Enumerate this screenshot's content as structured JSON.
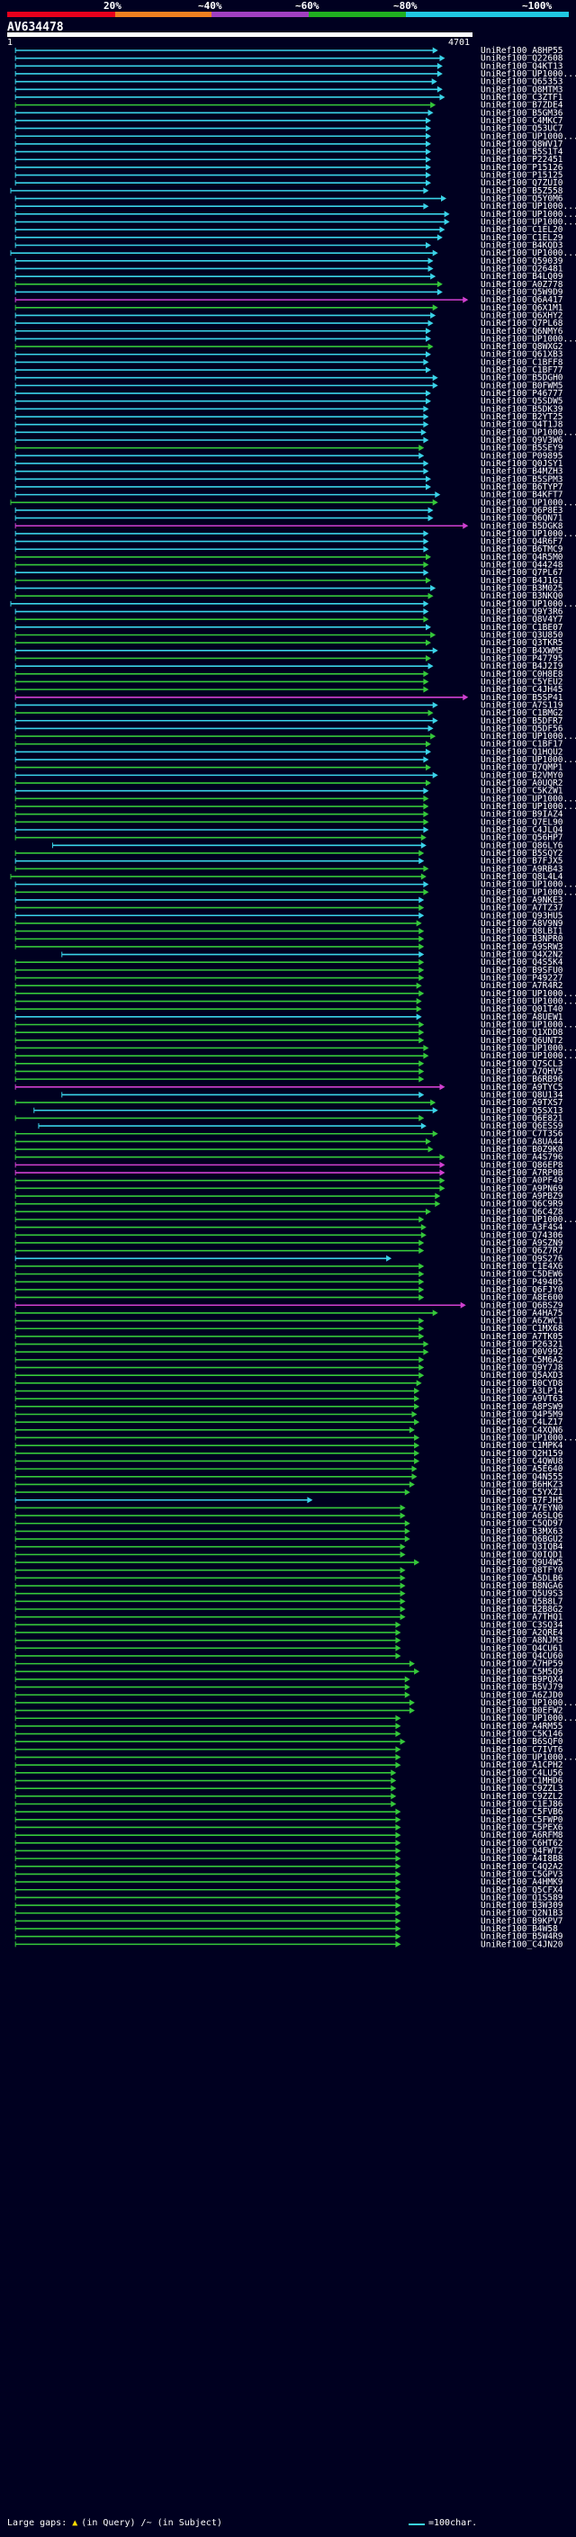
{
  "scale": {
    "labels": [
      "20%",
      "~40%",
      "~60%",
      "~80%",
      "~100%"
    ],
    "colors": [
      "#e8001c",
      "#f08020",
      "#a040c0",
      "#20b020",
      "#20c8e0"
    ]
  },
  "query": {
    "name": "AV634478",
    "start": "1",
    "end": "4701"
  },
  "legend": {
    "gaps_label": "Large gaps:",
    "query_gap": "(in Query)",
    "subject_gap": "(in Subject)",
    "scale_text": "=100char."
  },
  "colors": {
    "cyan": "#3ad3e8",
    "green": "#35c83a",
    "magenta": "#d040d0",
    "background": "#000020"
  },
  "hits": [
    [
      "UniRef100_A8HP55",
      "c",
      0.01,
      0.92
    ],
    [
      "UniRef100_Q22608",
      "c",
      0.01,
      0.935
    ],
    [
      "UniRef100_Q4KT13",
      "c",
      0.01,
      0.93
    ],
    [
      "UniRef100_UP1000...",
      "c",
      0.01,
      0.93
    ],
    [
      "UniRef100_Q65353",
      "c",
      0.01,
      0.918
    ],
    [
      "UniRef100_Q8MTM3",
      "c",
      0.01,
      0.93
    ],
    [
      "UniRef100_C3ZTF1",
      "c",
      0.01,
      0.935
    ],
    [
      "UniRef100_B7ZDE4",
      "g",
      0.01,
      0.915
    ],
    [
      "UniRef100_B5GM36",
      "c",
      0.01,
      0.91
    ],
    [
      "UniRef100_C4MKC7",
      "c",
      0.01,
      0.905
    ],
    [
      "UniRef100_Q53UC7",
      "c",
      0.01,
      0.905
    ],
    [
      "UniRef100_UP1000...",
      "c",
      0.01,
      0.905
    ],
    [
      "UniRef100_Q8WV17",
      "c",
      0.01,
      0.905
    ],
    [
      "UniRef100_B5S1T4",
      "c",
      0.01,
      0.905
    ],
    [
      "UniRef100_P22451",
      "c",
      0.01,
      0.905
    ],
    [
      "UniRef100_P15126",
      "c",
      0.01,
      0.905
    ],
    [
      "UniRef100_P15125",
      "c",
      0.01,
      0.905
    ],
    [
      "UniRef100_Q7ZUI0",
      "c",
      0.01,
      0.905
    ],
    [
      "UniRef100_B5Z558",
      "c",
      0.0,
      0.9
    ],
    [
      "UniRef100_Q5Y0M6",
      "c",
      0.01,
      0.938
    ],
    [
      "UniRef100_UP1000...",
      "c",
      0.01,
      0.9
    ],
    [
      "UniRef100_UP1000...",
      "c",
      0.01,
      0.945
    ],
    [
      "UniRef100_UP1000...",
      "c",
      0.01,
      0.945
    ],
    [
      "UniRef100_C1EL20",
      "c",
      0.01,
      0.935
    ],
    [
      "UniRef100_C1EL29",
      "c",
      0.01,
      0.93
    ],
    [
      "UniRef100_B4KQD3",
      "c",
      0.01,
      0.905
    ],
    [
      "UniRef100_UP1000...",
      "c",
      0.0,
      0.92
    ],
    [
      "UniRef100_Q59039",
      "c",
      0.01,
      0.91
    ],
    [
      "UniRef100_Q26481",
      "c",
      0.01,
      0.91
    ],
    [
      "UniRef100_B4LQ09",
      "c",
      0.01,
      0.915
    ],
    [
      "UniRef100_A0Z778",
      "g",
      0.01,
      0.93
    ],
    [
      "UniRef100_Q5W9D9",
      "c",
      0.01,
      0.93
    ],
    [
      "UniRef100_Q6A417",
      "m",
      0.01,
      0.985
    ],
    [
      "UniRef100_Q6X1M1",
      "g",
      0.01,
      0.92
    ],
    [
      "UniRef100_Q6XHY2",
      "c",
      0.01,
      0.915
    ],
    [
      "UniRef100_Q7PL68",
      "c",
      0.01,
      0.91
    ],
    [
      "UniRef100_Q6NMY6",
      "c",
      0.01,
      0.905
    ],
    [
      "UniRef100_UP1000...",
      "c",
      0.01,
      0.905
    ],
    [
      "UniRef100_Q8WXG2",
      "g",
      0.01,
      0.91
    ],
    [
      "UniRef100_Q61XB3",
      "c",
      0.01,
      0.905
    ],
    [
      "UniRef100_C1BFF8",
      "c",
      0.01,
      0.9
    ],
    [
      "UniRef100_C1BF77",
      "c",
      0.01,
      0.905
    ],
    [
      "UniRef100_B5DGH0",
      "c",
      0.01,
      0.92
    ],
    [
      "UniRef100_B0FWM5",
      "c",
      0.01,
      0.92
    ],
    [
      "UniRef100_P46777",
      "c",
      0.01,
      0.905
    ],
    [
      "UniRef100_Q5SDW5",
      "c",
      0.01,
      0.905
    ],
    [
      "UniRef100_B5DK39",
      "c",
      0.01,
      0.9
    ],
    [
      "UniRef100_B2YT25",
      "c",
      0.01,
      0.9
    ],
    [
      "UniRef100_Q4T1J8",
      "c",
      0.01,
      0.9
    ],
    [
      "UniRef100_UP1000...",
      "c",
      0.01,
      0.895
    ],
    [
      "UniRef100_Q9V3W6",
      "c",
      0.01,
      0.9
    ],
    [
      "UniRef100_B5SEY9",
      "g",
      0.01,
      0.89
    ],
    [
      "UniRef100_P09895",
      "c",
      0.01,
      0.89
    ],
    [
      "UniRef100_Q0JSY1",
      "c",
      0.01,
      0.9
    ],
    [
      "UniRef100_B4MZH3",
      "c",
      0.01,
      0.9
    ],
    [
      "UniRef100_B5SPM3",
      "c",
      0.01,
      0.905
    ],
    [
      "UniRef100_B6TYP7",
      "c",
      0.01,
      0.905
    ],
    [
      "UniRef100_B4KFT7",
      "c",
      0.01,
      0.925
    ],
    [
      "UniRef100_UP1000...",
      "g",
      0.0,
      0.92
    ],
    [
      "UniRef100_Q6P8E3",
      "c",
      0.01,
      0.91
    ],
    [
      "UniRef100_Q6QN71",
      "c",
      0.01,
      0.91
    ],
    [
      "UniRef100_B5DGK8",
      "m",
      0.01,
      0.985
    ],
    [
      "UniRef100_UP1000...",
      "c",
      0.01,
      0.9
    ],
    [
      "UniRef100_Q4R6F7",
      "c",
      0.01,
      0.9
    ],
    [
      "UniRef100_B6TMC9",
      "c",
      0.01,
      0.9
    ],
    [
      "UniRef100_Q4R5M0",
      "g",
      0.01,
      0.905
    ],
    [
      "UniRef100_Q44248",
      "g",
      0.01,
      0.9
    ],
    [
      "UniRef100_Q7PL67",
      "c",
      0.01,
      0.9
    ],
    [
      "UniRef100_B4J1G1",
      "g",
      0.01,
      0.905
    ],
    [
      "UniRef100_B3M025",
      "c",
      0.01,
      0.915
    ],
    [
      "UniRef100_B3NKQ0",
      "g",
      0.01,
      0.91
    ],
    [
      "UniRef100_UP1000...",
      "c",
      0.0,
      0.9
    ],
    [
      "UniRef100_Q9Y3R6",
      "c",
      0.01,
      0.9
    ],
    [
      "UniRef100_Q8V4Y7",
      "g",
      0.01,
      0.9
    ],
    [
      "UniRef100_C1BE07",
      "c",
      0.01,
      0.905
    ],
    [
      "UniRef100_Q3U850",
      "g",
      0.01,
      0.915
    ],
    [
      "UniRef100_Q3TKR5",
      "g",
      0.01,
      0.905
    ],
    [
      "UniRef100_B4XWM5",
      "c",
      0.01,
      0.92
    ],
    [
      "UniRef100_P47795",
      "g",
      0.01,
      0.905
    ],
    [
      "UniRef100_B4J2I9",
      "c",
      0.01,
      0.91
    ],
    [
      "UniRef100_C0H8E8",
      "g",
      0.01,
      0.9
    ],
    [
      "UniRef100_C5YEU2",
      "g",
      0.01,
      0.9
    ],
    [
      "UniRef100_C4JH45",
      "g",
      0.01,
      0.9
    ],
    [
      "UniRef100_B5SP41",
      "m",
      0.01,
      0.985
    ],
    [
      "UniRef100_A7S119",
      "c",
      0.01,
      0.92
    ],
    [
      "UniRef100_C1BMG2",
      "g",
      0.01,
      0.91
    ],
    [
      "UniRef100_B5DFR7",
      "c",
      0.01,
      0.92
    ],
    [
      "UniRef100_Q5DF56",
      "c",
      0.01,
      0.91
    ],
    [
      "UniRef100_UP1000...",
      "g",
      0.01,
      0.915
    ],
    [
      "UniRef100_C1BF17",
      "g",
      0.01,
      0.905
    ],
    [
      "UniRef100_Q1HQU2",
      "c",
      0.01,
      0.905
    ],
    [
      "UniRef100_UP1000...",
      "c",
      0.01,
      0.9
    ],
    [
      "UniRef100_Q7QMP1",
      "g",
      0.01,
      0.905
    ],
    [
      "UniRef100_B2VMY0",
      "c",
      0.01,
      0.92
    ],
    [
      "UniRef100_A0UQR2",
      "g",
      0.01,
      0.905
    ],
    [
      "UniRef100_C5KZW1",
      "c",
      0.01,
      0.9
    ],
    [
      "UniRef100_UP1000...",
      "g",
      0.01,
      0.9
    ],
    [
      "UniRef100_UP1000...",
      "g",
      0.01,
      0.9
    ],
    [
      "UniRef100_B9IAZ4",
      "g",
      0.01,
      0.9
    ],
    [
      "UniRef100_Q7EL90",
      "g",
      0.01,
      0.9
    ],
    [
      "UniRef100_C4JLQ4",
      "c",
      0.01,
      0.9
    ],
    [
      "UniRef100_Q56HP7",
      "g",
      0.01,
      0.895
    ],
    [
      "UniRef100_Q86LY6",
      "c",
      0.09,
      0.895
    ],
    [
      "UniRef100_B5SQY2",
      "g",
      0.01,
      0.89
    ],
    [
      "UniRef100_B7FJX5",
      "c",
      0.01,
      0.89
    ],
    [
      "UniRef100_A9RB43",
      "g",
      0.01,
      0.9
    ],
    [
      "UniRef100_Q8L4L4",
      "g",
      0.0,
      0.895
    ],
    [
      "UniRef100_UP1000...",
      "c",
      0.01,
      0.9
    ],
    [
      "UniRef100_UP1000...",
      "g",
      0.01,
      0.9
    ],
    [
      "UniRef100_A9NKE3",
      "c",
      0.01,
      0.89
    ],
    [
      "UniRef100_A7TZ37",
      "g",
      0.01,
      0.89
    ],
    [
      "UniRef100_Q93HU5",
      "c",
      0.01,
      0.89
    ],
    [
      "UniRef100_A8V9N9",
      "g",
      0.01,
      0.885
    ],
    [
      "UniRef100_Q8LBI1",
      "g",
      0.01,
      0.89
    ],
    [
      "UniRef100_B3NPR0",
      "g",
      0.01,
      0.89
    ],
    [
      "UniRef100_A9SRW3",
      "g",
      0.01,
      0.89
    ],
    [
      "UniRef100_Q4X2N2",
      "c",
      0.11,
      0.89
    ],
    [
      "UniRef100_Q4S5K4",
      "g",
      0.01,
      0.89
    ],
    [
      "UniRef100_B9SFU0",
      "g",
      0.01,
      0.89
    ],
    [
      "UniRef100_P49227",
      "g",
      0.01,
      0.89
    ],
    [
      "UniRef100_A7R4R2",
      "g",
      0.01,
      0.885
    ],
    [
      "UniRef100_UP1000...",
      "g",
      0.01,
      0.89
    ],
    [
      "UniRef100_UP1000...",
      "g",
      0.01,
      0.885
    ],
    [
      "UniRef100_Q01T40",
      "g",
      0.01,
      0.885
    ],
    [
      "UniRef100_A8UEW1",
      "c",
      0.01,
      0.885
    ],
    [
      "UniRef100_UP1000...",
      "g",
      0.01,
      0.89
    ],
    [
      "UniRef100_Q1XDD8",
      "g",
      0.01,
      0.89
    ],
    [
      "UniRef100_Q6UNT2",
      "g",
      0.01,
      0.89
    ],
    [
      "UniRef100_UP1000...",
      "g",
      0.01,
      0.9
    ],
    [
      "UniRef100_UP1000...",
      "g",
      0.01,
      0.9
    ],
    [
      "UniRef100_Q7SCL3",
      "g",
      0.01,
      0.89
    ],
    [
      "UniRef100_A7QHV5",
      "g",
      0.01,
      0.89
    ],
    [
      "UniRef100_B6RB96",
      "g",
      0.01,
      0.89
    ],
    [
      "UniRef100_A9TYC5",
      "m",
      0.01,
      0.935
    ],
    [
      "UniRef100_Q8U134",
      "c",
      0.11,
      0.89
    ],
    [
      "UniRef100_A9TXS7",
      "g",
      0.01,
      0.915
    ],
    [
      "UniRef100_Q5SX13",
      "c",
      0.05,
      0.92
    ],
    [
      "UniRef100_Q6E821",
      "g",
      0.01,
      0.89
    ],
    [
      "UniRef100_Q6ESS9",
      "c",
      0.06,
      0.895
    ],
    [
      "UniRef100_C7T3S6",
      "g",
      0.01,
      0.92
    ],
    [
      "UniRef100_A8UA44",
      "g",
      0.01,
      0.905
    ],
    [
      "UniRef100_B0Z9K0",
      "g",
      0.01,
      0.91
    ],
    [
      "UniRef100_A4S796",
      "g",
      0.01,
      0.935
    ],
    [
      "UniRef100_Q86EP8",
      "m",
      0.01,
      0.935
    ],
    [
      "UniRef100_A7RP0B",
      "m",
      0.01,
      0.935
    ],
    [
      "UniRef100_A0PF49",
      "g",
      0.01,
      0.935
    ],
    [
      "UniRef100_A9PN69",
      "g",
      0.01,
      0.935
    ],
    [
      "UniRef100_A9PBZ9",
      "g",
      0.01,
      0.925
    ],
    [
      "UniRef100_Q6C9R9",
      "g",
      0.01,
      0.925
    ],
    [
      "UniRef100_Q6C4Z8",
      "g",
      0.01,
      0.905
    ],
    [
      "UniRef100_UP1000...",
      "g",
      0.01,
      0.89
    ],
    [
      "UniRef100_A3F4S4",
      "g",
      0.01,
      0.895
    ],
    [
      "UniRef100_Q74306",
      "g",
      0.01,
      0.895
    ],
    [
      "UniRef100_A9SZN9",
      "g",
      0.01,
      0.89
    ],
    [
      "UniRef100_Q6Z7R7",
      "g",
      0.01,
      0.89
    ],
    [
      "UniRef100_Q9S276",
      "c",
      0.01,
      0.82
    ],
    [
      "UniRef100_C1E4X6",
      "g",
      0.01,
      0.89
    ],
    [
      "UniRef100_C5DEW6",
      "g",
      0.01,
      0.89
    ],
    [
      "UniRef100_P49405",
      "g",
      0.01,
      0.89
    ],
    [
      "UniRef100_Q6FJY0",
      "g",
      0.01,
      0.89
    ],
    [
      "UniRef100_A8E600",
      "g",
      0.01,
      0.89
    ],
    [
      "UniRef100_Q6BSZ9",
      "m",
      0.01,
      0.98
    ],
    [
      "UniRef100_A4HA75",
      "g",
      0.01,
      0.92
    ],
    [
      "UniRef100_A6ZWC1",
      "g",
      0.01,
      0.89
    ],
    [
      "UniRef100_C1MX68",
      "g",
      0.01,
      0.89
    ],
    [
      "UniRef100_A7TK05",
      "g",
      0.01,
      0.89
    ],
    [
      "UniRef100_P26321",
      "g",
      0.01,
      0.9
    ],
    [
      "UniRef100_Q0V992",
      "g",
      0.01,
      0.9
    ],
    [
      "UniRef100_C5M6A2",
      "g",
      0.01,
      0.89
    ],
    [
      "UniRef100_Q9Y7J8",
      "g",
      0.01,
      0.89
    ],
    [
      "UniRef100_Q5AXD3",
      "g",
      0.01,
      0.89
    ],
    [
      "UniRef100_B0CYD8",
      "g",
      0.01,
      0.885
    ],
    [
      "UniRef100_A3LP14",
      "g",
      0.01,
      0.88
    ],
    [
      "UniRef100_A9VT63",
      "g",
      0.01,
      0.88
    ],
    [
      "UniRef100_A8PSW9",
      "g",
      0.01,
      0.88
    ],
    [
      "UniRef100_Q4P5M9",
      "g",
      0.01,
      0.875
    ],
    [
      "UniRef100_C4LZ17",
      "g",
      0.01,
      0.88
    ],
    [
      "UniRef100_C4XQN6",
      "g",
      0.01,
      0.87
    ],
    [
      "UniRef100_UP1000...",
      "g",
      0.01,
      0.88
    ],
    [
      "UniRef100_C1MPK4",
      "g",
      0.01,
      0.88
    ],
    [
      "UniRef100_Q2H159",
      "g",
      0.01,
      0.88
    ],
    [
      "UniRef100_C4QWU8",
      "g",
      0.01,
      0.88
    ],
    [
      "UniRef100_A5E640",
      "g",
      0.01,
      0.875
    ],
    [
      "UniRef100_Q4N555",
      "g",
      0.01,
      0.875
    ],
    [
      "UniRef100_B6HKZ3",
      "g",
      0.01,
      0.87
    ],
    [
      "UniRef100_C5YXZ1",
      "g",
      0.01,
      0.86
    ],
    [
      "UniRef100_B7FJH5",
      "c",
      0.01,
      0.65
    ],
    [
      "UniRef100_A7EYN0",
      "g",
      0.01,
      0.85
    ],
    [
      "UniRef100_A6SLQ6",
      "g",
      0.01,
      0.85
    ],
    [
      "UniRef100_C5QD97",
      "g",
      0.01,
      0.86
    ],
    [
      "UniRef100_B3MX63",
      "g",
      0.01,
      0.86
    ],
    [
      "UniRef100_Q6BGU2",
      "g",
      0.01,
      0.86
    ],
    [
      "UniRef100_Q3IQB4",
      "g",
      0.01,
      0.85
    ],
    [
      "UniRef100_Q0IQD1",
      "g",
      0.01,
      0.85
    ],
    [
      "UniRef100_Q9U4W5",
      "g",
      0.01,
      0.88
    ],
    [
      "UniRef100_Q8TFY0",
      "g",
      0.01,
      0.85
    ],
    [
      "UniRef100_A5DLB6",
      "g",
      0.01,
      0.85
    ],
    [
      "UniRef100_B8NGA6",
      "g",
      0.01,
      0.85
    ],
    [
      "UniRef100_Q5U9S3",
      "g",
      0.01,
      0.85
    ],
    [
      "UniRef100_Q5B8L7",
      "g",
      0.01,
      0.85
    ],
    [
      "UniRef100_B2B8G2",
      "g",
      0.01,
      0.85
    ],
    [
      "UniRef100_A7THQ1",
      "g",
      0.01,
      0.85
    ],
    [
      "UniRef100_C3SQ34",
      "g",
      0.01,
      0.84
    ],
    [
      "UniRef100_A2QRE4",
      "g",
      0.01,
      0.84
    ],
    [
      "UniRef100_A8NJM3",
      "g",
      0.01,
      0.84
    ],
    [
      "UniRef100_Q4CU61",
      "g",
      0.01,
      0.84
    ],
    [
      "UniRef100_Q4CU60",
      "g",
      0.01,
      0.84
    ],
    [
      "UniRef100_A7HP59",
      "g",
      0.01,
      0.87
    ],
    [
      "UniRef100_C5M5Q9",
      "g",
      0.01,
      0.88
    ],
    [
      "UniRef100_B9PQX4",
      "g",
      0.01,
      0.86
    ],
    [
      "UniRef100_B5VJ79",
      "g",
      0.01,
      0.86
    ],
    [
      "UniRef100_A6ZJD0",
      "g",
      0.01,
      0.86
    ],
    [
      "UniRef100_UP1000...",
      "g",
      0.01,
      0.87
    ],
    [
      "UniRef100_B0EFW2",
      "g",
      0.01,
      0.87
    ],
    [
      "UniRef100_UP1000...",
      "g",
      0.01,
      0.84
    ],
    [
      "UniRef100_A4RM55",
      "g",
      0.01,
      0.84
    ],
    [
      "UniRef100_C5K146",
      "g",
      0.01,
      0.84
    ],
    [
      "UniRef100_B6SQF0",
      "g",
      0.01,
      0.85
    ],
    [
      "UniRef100_C7IVT6",
      "g",
      0.01,
      0.84
    ],
    [
      "UniRef100_UP1000...",
      "g",
      0.01,
      0.84
    ],
    [
      "UniRef100_A1CPH2",
      "g",
      0.01,
      0.84
    ],
    [
      "UniRef100_C4LU56",
      "g",
      0.01,
      0.83
    ],
    [
      "UniRef100_C1MHD6",
      "g",
      0.01,
      0.83
    ],
    [
      "UniRef100_C9ZZL3",
      "g",
      0.01,
      0.83
    ],
    [
      "UniRef100_C9ZZL2",
      "g",
      0.01,
      0.83
    ],
    [
      "UniRef100_C1EJ86",
      "g",
      0.01,
      0.83
    ],
    [
      "UniRef100_C5FVB6",
      "g",
      0.01,
      0.84
    ],
    [
      "UniRef100_C5FWP0",
      "g",
      0.01,
      0.84
    ],
    [
      "UniRef100_C5PEX6",
      "g",
      0.01,
      0.84
    ],
    [
      "UniRef100_A6RFM8",
      "g",
      0.01,
      0.84
    ],
    [
      "UniRef100_C6HT62",
      "g",
      0.01,
      0.84
    ],
    [
      "UniRef100_Q4FWT2",
      "g",
      0.01,
      0.84
    ],
    [
      "UniRef100_A4I8B8",
      "g",
      0.01,
      0.84
    ],
    [
      "UniRef100_C4Q2A2",
      "g",
      0.01,
      0.84
    ],
    [
      "UniRef100_C5GPV3",
      "g",
      0.01,
      0.84
    ],
    [
      "UniRef100_A4HMK9",
      "g",
      0.01,
      0.84
    ],
    [
      "UniRef100_Q5CFX4",
      "g",
      0.01,
      0.84
    ],
    [
      "UniRef100_Q1S589",
      "g",
      0.01,
      0.84
    ],
    [
      "UniRef100_B3W309",
      "g",
      0.01,
      0.84
    ],
    [
      "UniRef100_Q2N1B3",
      "g",
      0.01,
      0.84
    ],
    [
      "UniRef100_B9KPV7",
      "g",
      0.01,
      0.84
    ],
    [
      "UniRef100_B4W58",
      "g",
      0.01,
      0.84
    ],
    [
      "UniRef100_B5W4R9",
      "g",
      0.01,
      0.84
    ],
    [
      "UniRef100_C4JN20",
      "g",
      0.01,
      0.84
    ]
  ]
}
